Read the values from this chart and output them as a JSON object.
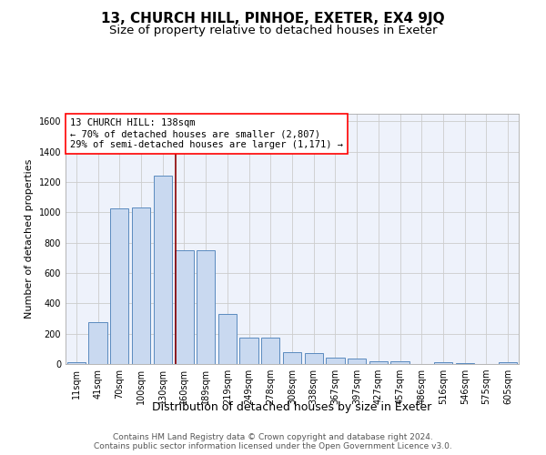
{
  "title": "13, CHURCH HILL, PINHOE, EXETER, EX4 9JQ",
  "subtitle": "Size of property relative to detached houses in Exeter",
  "xlabel": "Distribution of detached houses by size in Exeter",
  "ylabel": "Number of detached properties",
  "categories": [
    "11sqm",
    "41sqm",
    "70sqm",
    "100sqm",
    "130sqm",
    "160sqm",
    "189sqm",
    "219sqm",
    "249sqm",
    "278sqm",
    "308sqm",
    "338sqm",
    "367sqm",
    "397sqm",
    "427sqm",
    "457sqm",
    "486sqm",
    "516sqm",
    "546sqm",
    "575sqm",
    "605sqm"
  ],
  "values": [
    10,
    275,
    1025,
    1030,
    1240,
    750,
    750,
    330,
    175,
    175,
    80,
    75,
    45,
    35,
    20,
    20,
    0,
    15,
    5,
    0,
    15
  ],
  "bar_color": "#c9d9f0",
  "bar_edge_color": "#5b8bbf",
  "red_line_x": 4.62,
  "annotation_text": "13 CHURCH HILL: 138sqm\n← 70% of detached houses are smaller (2,807)\n29% of semi-detached houses are larger (1,171) →",
  "annotation_box_color": "white",
  "annotation_box_edge_color": "red",
  "red_line_color": "#8b0000",
  "ylim": [
    0,
    1650
  ],
  "yticks": [
    0,
    200,
    400,
    600,
    800,
    1000,
    1200,
    1400,
    1600
  ],
  "grid_color": "#cccccc",
  "background_color": "#eef2fb",
  "footer_text": "Contains HM Land Registry data © Crown copyright and database right 2024.\nContains public sector information licensed under the Open Government Licence v3.0.",
  "title_fontsize": 11,
  "subtitle_fontsize": 9.5,
  "xlabel_fontsize": 9,
  "ylabel_fontsize": 8,
  "tick_fontsize": 7,
  "annotation_fontsize": 7.5,
  "footer_fontsize": 6.5
}
